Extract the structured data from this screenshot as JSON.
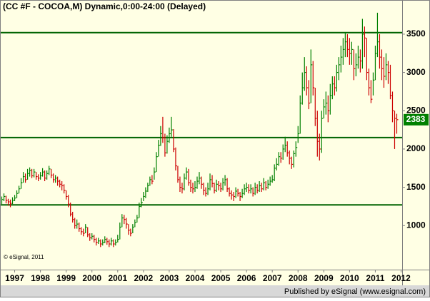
{
  "chart_data": {
    "type": "ohlc",
    "title": "(CC #F - COCOA,M) Dynamic,0:00-24:00 (Delayed)",
    "copyright": "© eSignal, 2011",
    "footer": "Published by eSignal (www.esignal.com)",
    "up_color": "#008000",
    "down_color": "#cc0000",
    "line_color": "#006400",
    "ylim": [
      425,
      3937
    ],
    "yticks": [
      1000,
      1500,
      2000,
      2500,
      3000,
      3500
    ],
    "hlines": [
      3520,
      2150,
      1270
    ],
    "categories": [
      null,
      null,
      null,
      null,
      null,
      null,
      "1997",
      null,
      null,
      null,
      null,
      null,
      null,
      null,
      null,
      null,
      null,
      null,
      "1998",
      null,
      null,
      null,
      null,
      null,
      null,
      null,
      null,
      null,
      null,
      null,
      "1999",
      null,
      null,
      null,
      null,
      null,
      null,
      null,
      null,
      null,
      null,
      null,
      "2000",
      null,
      null,
      null,
      null,
      null,
      null,
      null,
      null,
      null,
      null,
      null,
      "2001",
      null,
      null,
      null,
      null,
      null,
      null,
      null,
      null,
      null,
      null,
      null,
      "2002",
      null,
      null,
      null,
      null,
      null,
      null,
      null,
      null,
      null,
      null,
      null,
      "2003",
      null,
      null,
      null,
      null,
      null,
      null,
      null,
      null,
      null,
      null,
      null,
      "2004",
      null,
      null,
      null,
      null,
      null,
      null,
      null,
      null,
      null,
      null,
      null,
      "2005",
      null,
      null,
      null,
      null,
      null,
      null,
      null,
      null,
      null,
      null,
      null,
      "2006",
      null,
      null,
      null,
      null,
      null,
      null,
      null,
      null,
      null,
      null,
      null,
      "2007",
      null,
      null,
      null,
      null,
      null,
      null,
      null,
      null,
      null,
      null,
      null,
      "2008",
      null,
      null,
      null,
      null,
      null,
      null,
      null,
      null,
      null,
      null,
      null,
      "2009",
      null,
      null,
      null,
      null,
      null,
      null,
      null,
      null,
      null,
      null,
      null,
      "2010",
      null,
      null,
      null,
      null,
      null,
      null,
      null,
      null,
      null,
      null,
      null,
      "2011",
      null,
      null,
      null,
      null,
      null,
      null,
      null,
      null,
      null,
      null,
      null,
      "2012"
    ],
    "high": [
      1380,
      1420,
      1390,
      1350,
      1340,
      1370,
      1400,
      1460,
      1520,
      1620,
      1700,
      1680,
      1740,
      1760,
      1740,
      1740,
      1700,
      1670,
      1700,
      1750,
      1720,
      1720,
      1780,
      1740,
      1680,
      1660,
      1640,
      1600,
      1580,
      1540,
      1460,
      1400,
      1300,
      1180,
      1100,
      1080,
      1040,
      980,
      960,
      1020,
      980,
      900,
      900,
      880,
      840,
      840,
      820,
      820,
      860,
      840,
      820,
      840,
      820,
      820,
      880,
      1040,
      1150,
      1140,
      1100,
      1020,
      960,
      1020,
      1080,
      1140,
      1300,
      1360,
      1440,
      1500,
      1560,
      1640,
      1660,
      1760,
      1960,
      2120,
      2300,
      2420,
      2200,
      2180,
      2280,
      2420,
      2260,
      2020,
      1780,
      1640,
      1560,
      1680,
      1760,
      1740,
      1600,
      1560,
      1580,
      1640,
      1700,
      1640,
      1560,
      1500,
      1560,
      1680,
      1660,
      1560,
      1600,
      1580,
      1560,
      1620,
      1660,
      1620,
      1500,
      1460,
      1440,
      1500,
      1480,
      1440,
      1480,
      1540,
      1560,
      1540,
      1540,
      1500,
      1560,
      1540,
      1580,
      1560,
      1620,
      1580,
      1600,
      1640,
      1660,
      1800,
      1880,
      1960,
      1960,
      2060,
      2160,
      2100,
      1980,
      1900,
      1980,
      2100,
      2300,
      2700,
      3000,
      3200,
      3080,
      2900,
      3300,
      3150,
      2800,
      2500,
      2200,
      2500,
      2650,
      2750,
      2700,
      2850,
      2950,
      2950,
      3100,
      3200,
      3350,
      3450,
      3520,
      3500,
      3450,
      3400,
      3300,
      3250,
      3350,
      3300,
      3700,
      3600,
      3450,
      3050,
      2900,
      3000,
      3350,
      3780,
      3500,
      3300,
      3200,
      3250,
      3150,
      3100,
      2750,
      2500,
      2460,
      null,
      null
    ],
    "low": [
      1280,
      1320,
      1290,
      1260,
      1240,
      1280,
      1320,
      1360,
      1420,
      1480,
      1560,
      1560,
      1600,
      1640,
      1620,
      1630,
      1600,
      1580,
      1600,
      1640,
      1580,
      1600,
      1660,
      1620,
      1560,
      1560,
      1520,
      1500,
      1460,
      1420,
      1340,
      1240,
      1120,
      1040,
      960,
      960,
      920,
      880,
      860,
      900,
      850,
      800,
      820,
      780,
      740,
      760,
      720,
      740,
      770,
      750,
      720,
      740,
      720,
      740,
      780,
      820,
      980,
      1020,
      960,
      880,
      860,
      900,
      980,
      1040,
      1100,
      1240,
      1320,
      1360,
      1440,
      1520,
      1540,
      1600,
      1700,
      1900,
      2040,
      2080,
      1900,
      1940,
      2080,
      2160,
      1960,
      1720,
      1560,
      1440,
      1420,
      1460,
      1600,
      1520,
      1440,
      1420,
      1440,
      1480,
      1540,
      1480,
      1400,
      1380,
      1400,
      1460,
      1500,
      1420,
      1440,
      1460,
      1440,
      1460,
      1520,
      1440,
      1380,
      1340,
      1320,
      1360,
      1380,
      1320,
      1360,
      1400,
      1440,
      1420,
      1420,
      1380,
      1400,
      1420,
      1440,
      1440,
      1460,
      1460,
      1480,
      1520,
      1560,
      1580,
      1720,
      1780,
      1820,
      1860,
      1960,
      1900,
      1800,
      1740,
      1760,
      1900,
      2080,
      2200,
      2580,
      2760,
      2700,
      2520,
      2600,
      2700,
      2300,
      1900,
      1850,
      1950,
      2400,
      2450,
      2350,
      2450,
      2650,
      2700,
      2750,
      2900,
      3000,
      3100,
      3200,
      3200,
      3100,
      3100,
      2900,
      2950,
      3050,
      3000,
      3050,
      3200,
      2900,
      2700,
      2600,
      2700,
      2900,
      3200,
      3050,
      2900,
      2800,
      2900,
      2850,
      2650,
      2350,
      2000,
      2200,
      null,
      null
    ],
    "close": [
      1340,
      1380,
      1330,
      1310,
      1290,
      1330,
      1360,
      1420,
      1480,
      1560,
      1640,
      1600,
      1680,
      1720,
      1650,
      1700,
      1640,
      1620,
      1650,
      1700,
      1620,
      1680,
      1740,
      1660,
      1600,
      1620,
      1580,
      1540,
      1520,
      1460,
      1380,
      1280,
      1150,
      1080,
      1000,
      1020,
      960,
      920,
      900,
      980,
      880,
      840,
      860,
      820,
      780,
      800,
      760,
      780,
      820,
      790,
      760,
      800,
      760,
      780,
      820,
      980,
      1100,
      1080,
      1020,
      940,
      900,
      980,
      1040,
      1100,
      1250,
      1300,
      1380,
      1450,
      1520,
      1600,
      1580,
      1700,
      1900,
      2050,
      2200,
      2150,
      1950,
      2100,
      2200,
      2250,
      2000,
      1780,
      1600,
      1500,
      1480,
      1620,
      1700,
      1560,
      1500,
      1480,
      1500,
      1580,
      1620,
      1540,
      1460,
      1420,
      1480,
      1600,
      1550,
      1460,
      1540,
      1520,
      1480,
      1560,
      1600,
      1480,
      1420,
      1400,
      1380,
      1450,
      1420,
      1380,
      1420,
      1480,
      1500,
      1460,
      1480,
      1420,
      1500,
      1460,
      1520,
      1480,
      1560,
      1500,
      1540,
      1580,
      1600,
      1750,
      1800,
      1900,
      1880,
      2000,
      2050,
      1950,
      1880,
      1800,
      1940,
      2020,
      2200,
      2600,
      2800,
      3000,
      2800,
      2600,
      3100,
      2800,
      2400,
      2100,
      2000,
      2400,
      2550,
      2600,
      2500,
      2700,
      2850,
      2800,
      3000,
      3100,
      3200,
      3300,
      3400,
      3300,
      3250,
      3300,
      3050,
      3100,
      3200,
      3150,
      3500,
      3450,
      3000,
      2800,
      2650,
      2900,
      3250,
      3400,
      3200,
      3050,
      2950,
      3100,
      3000,
      2700,
      2500,
      2400,
      2383,
      null,
      null
    ]
  }
}
